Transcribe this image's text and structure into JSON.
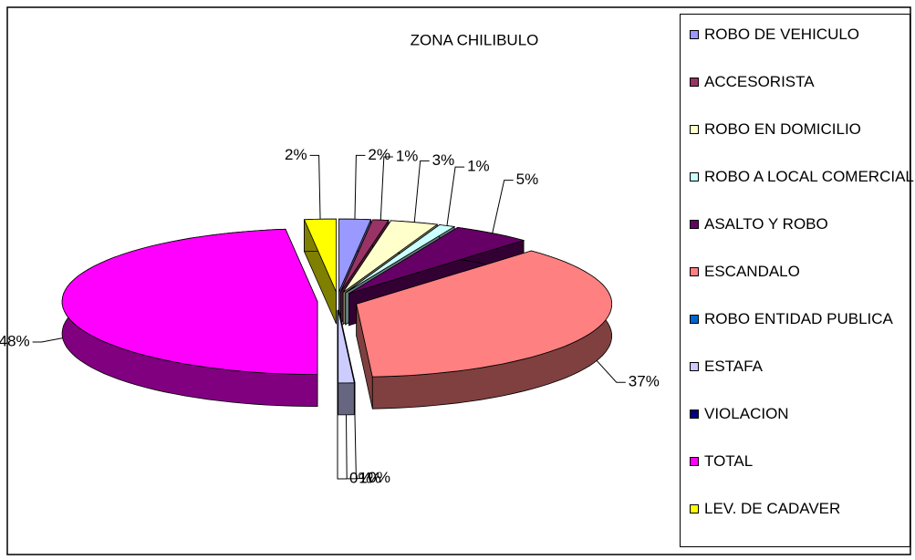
{
  "chart_data": {
    "type": "pie",
    "title": "ZONA CHILIBULO",
    "categories": [
      "ROBO DE VEHICULO",
      "ACCESORISTA",
      "ROBO EN DOMICILIO",
      "ROBO A LOCAL COMERCIAL",
      "ASALTO Y ROBO",
      "ESCANDALO",
      "ROBO ENTIDAD PUBLICA",
      "ESTAFA",
      "VIOLACION",
      "TOTAL",
      "LEV. DE CADAVER"
    ],
    "values": [
      2,
      1,
      3,
      1,
      5,
      37,
      0,
      1,
      0,
      48,
      2
    ],
    "value_labels": [
      "2%",
      "1%",
      "3%",
      "1%",
      "5%",
      "37%",
      "0%",
      "1%",
      "0%",
      "48%",
      "2%"
    ],
    "colors": [
      "#9999FF",
      "#993366",
      "#FFFFCC",
      "#CCFFFF",
      "#660066",
      "#FF8080",
      "#0066CC",
      "#CCCCFF",
      "#000080",
      "#FF00FF",
      "#FFFF00"
    ],
    "legend": "right"
  }
}
